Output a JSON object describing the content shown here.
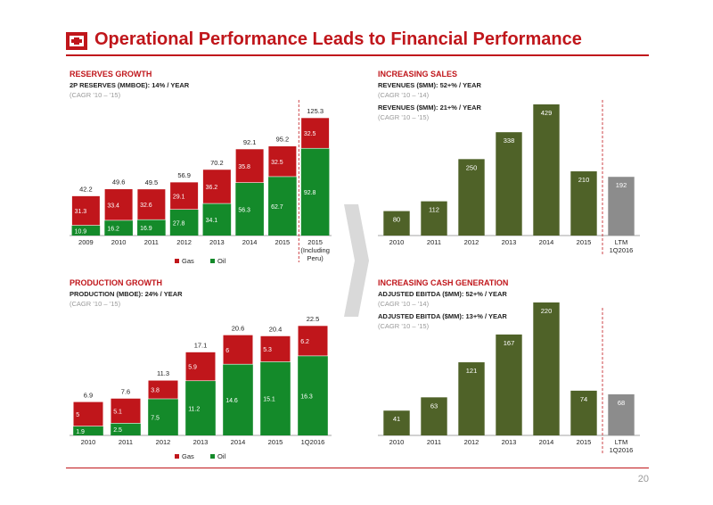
{
  "page": {
    "title": "Operational Performance Leads to Financial Performance",
    "page_number": "20",
    "logo_icon": "company-logo-icon",
    "colors": {
      "accent": "#c0161b",
      "oil": "#148a2a",
      "gas": "#c0161b",
      "olive": "#4f6228",
      "grey": "#8c8c8c",
      "arrow": "#d9d9d9"
    }
  },
  "reserves": {
    "title": "RESERVES GROWTH",
    "subtitle": "2P RESERVES (MMBOE): 14% / YEAR",
    "cagr": "(CAGR ’10 – ’15)"
  },
  "production": {
    "title": "PRODUCTION GROWTH",
    "subtitle": "PRODUCTION (MBOE): 24% / YEAR",
    "cagr": "(CAGR ’10 – ’15)"
  },
  "sales": {
    "title": "INCREASING SALES",
    "subtitle1": "REVENUES ($MM): 52+% / YEAR",
    "cagr1": "(CAGR ’10 – ’14)",
    "subtitle2": "REVENUES ($MM): 21+% / YEAR",
    "cagr2": "(CAGR ’10 – ’15)"
  },
  "cash": {
    "title": "INCREASING CASH GENERATION",
    "subtitle1": "ADJUSTED EBITDA ($MM): 52+% / YEAR",
    "cagr1": "(CAGR ’10 – ’14)",
    "subtitle2": "ADJUSTED EBITDA ($MM): 13+% / YEAR",
    "cagr2": "(CAGR ’10 – ’15)"
  },
  "chart_data": [
    {
      "id": "reserves",
      "type": "bar",
      "stacked": true,
      "categories": [
        "2009",
        "2010",
        "2011",
        "2012",
        "2013",
        "2014",
        "2015",
        "2015 (Including Peru)"
      ],
      "series": [
        {
          "name": "Oil",
          "values": [
            10.9,
            16.2,
            16.9,
            27.8,
            34.1,
            56.3,
            62.7,
            92.8
          ]
        },
        {
          "name": "Gas",
          "values": [
            31.3,
            33.4,
            32.6,
            29.1,
            36.2,
            35.8,
            32.5,
            32.5
          ]
        }
      ],
      "totals": [
        42.2,
        49.6,
        49.5,
        56.9,
        70.2,
        92.1,
        95.2,
        125.3
      ],
      "legend": [
        "Gas",
        "Oil"
      ],
      "legend_position": "bottom"
    },
    {
      "id": "production",
      "type": "bar",
      "stacked": true,
      "categories": [
        "2010",
        "2011",
        "2012",
        "2013",
        "2014",
        "2015",
        "1Q2016"
      ],
      "series": [
        {
          "name": "Oil",
          "values": [
            1.9,
            2.5,
            7.5,
            11.2,
            14.6,
            15.1,
            16.3
          ]
        },
        {
          "name": "Gas",
          "values": [
            5.0,
            5.1,
            3.8,
            5.9,
            6.0,
            5.3,
            6.2
          ]
        }
      ],
      "totals": [
        6.9,
        7.6,
        11.3,
        17.1,
        20.6,
        20.4,
        22.5
      ],
      "legend": [
        "Gas",
        "Oil"
      ],
      "legend_position": "bottom"
    },
    {
      "id": "sales",
      "type": "bar",
      "categories": [
        "2010",
        "2011",
        "2012",
        "2013",
        "2014",
        "2015",
        "LTM 1Q2016"
      ],
      "values": [
        80,
        112,
        250,
        338,
        429,
        210,
        192
      ]
    },
    {
      "id": "cash",
      "type": "bar",
      "categories": [
        "2010",
        "2011",
        "2012",
        "2013",
        "2014",
        "2015",
        "LTM 1Q2016"
      ],
      "values": [
        41,
        63,
        121,
        167,
        220,
        74,
        68
      ]
    }
  ]
}
